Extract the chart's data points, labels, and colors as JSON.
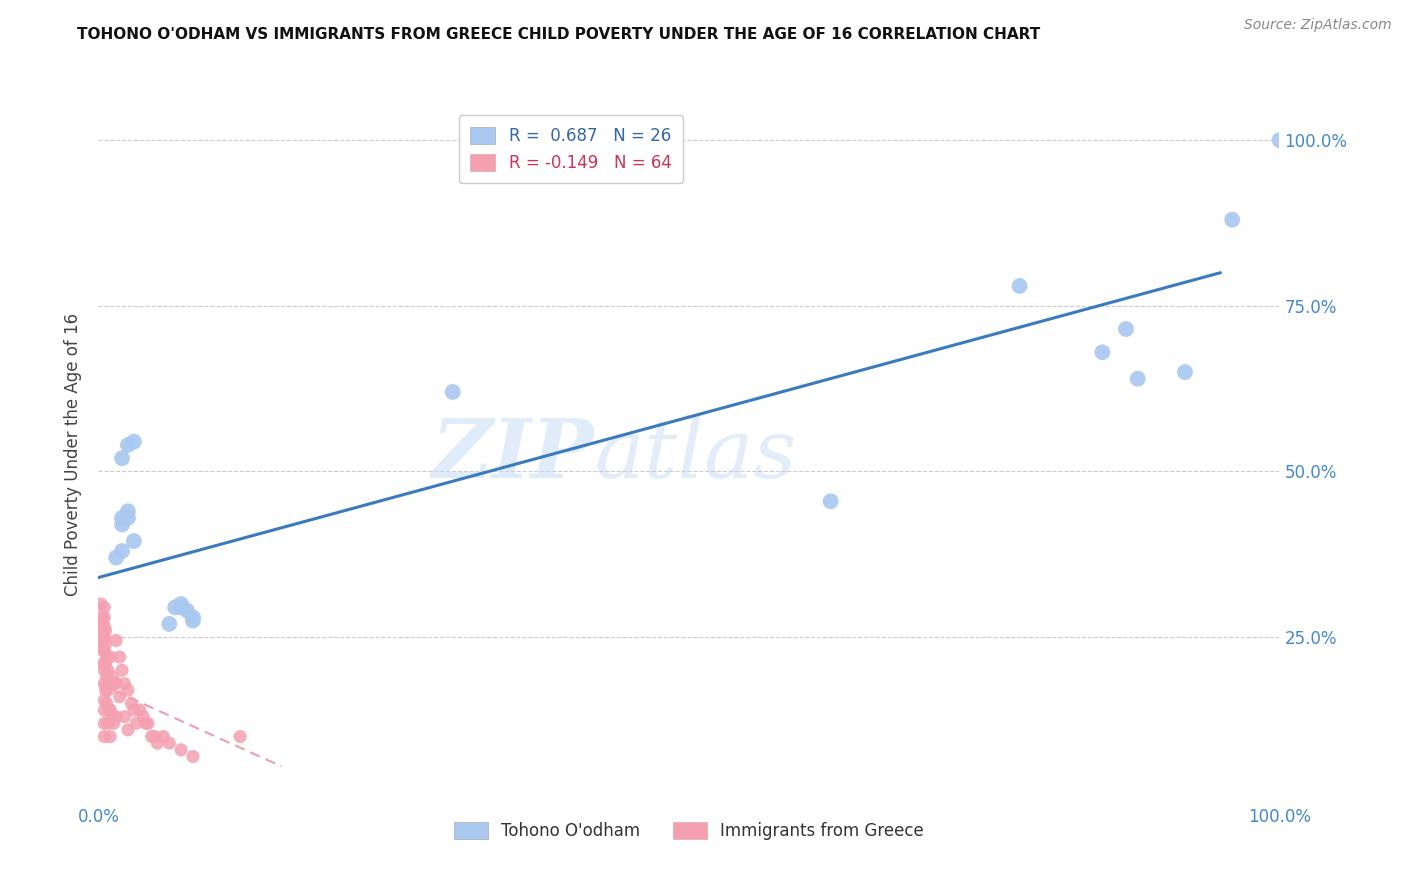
{
  "title": "TOHONO O'ODHAM VS IMMIGRANTS FROM GREECE CHILD POVERTY UNDER THE AGE OF 16 CORRELATION CHART",
  "source": "Source: ZipAtlas.com",
  "ylabel": "Child Poverty Under the Age of 16",
  "blue_color": "#a8c8f0",
  "pink_color": "#f4a0b0",
  "blue_line_color": "#3a7abf",
  "pink_line_color": "#e8a0b0",
  "watermark_zip": "ZIP",
  "watermark_atlas": "atlas",
  "xlim": [
    0.0,
    1.0
  ],
  "ylim": [
    0.0,
    1.05
  ],
  "xtick_positions": [
    0.0,
    1.0
  ],
  "xtick_labels": [
    "0.0%",
    "100.0%"
  ],
  "ytick_positions": [
    0.25,
    0.5,
    0.75,
    1.0
  ],
  "ytick_labels": [
    "25.0%",
    "50.0%",
    "75.0%",
    "100.0%"
  ],
  "tick_color": "#4488cc",
  "blue_scatter_x": [
    0.02,
    0.02,
    0.025,
    0.03,
    0.015,
    0.02,
    0.025,
    0.02,
    0.03,
    0.025,
    0.06,
    0.065,
    0.07,
    0.08,
    0.08,
    0.075,
    0.07,
    0.3,
    0.62,
    0.78,
    0.85,
    0.87,
    0.88,
    0.92,
    0.96,
    1.0
  ],
  "blue_scatter_y": [
    0.42,
    0.52,
    0.54,
    0.545,
    0.37,
    0.43,
    0.44,
    0.38,
    0.395,
    0.43,
    0.27,
    0.295,
    0.295,
    0.275,
    0.28,
    0.29,
    0.3,
    0.62,
    0.455,
    0.78,
    0.68,
    0.715,
    0.64,
    0.65,
    0.88,
    1.0
  ],
  "pink_scatter_x": [
    0.002,
    0.003,
    0.003,
    0.003,
    0.004,
    0.004,
    0.004,
    0.004,
    0.005,
    0.005,
    0.005,
    0.005,
    0.005,
    0.005,
    0.005,
    0.005,
    0.005,
    0.005,
    0.005,
    0.006,
    0.006,
    0.006,
    0.006,
    0.007,
    0.007,
    0.007,
    0.008,
    0.008,
    0.008,
    0.009,
    0.009,
    0.01,
    0.01,
    0.01,
    0.01,
    0.012,
    0.012,
    0.013,
    0.013,
    0.015,
    0.015,
    0.015,
    0.018,
    0.018,
    0.02,
    0.022,
    0.022,
    0.025,
    0.025,
    0.028,
    0.03,
    0.032,
    0.035,
    0.038,
    0.04,
    0.042,
    0.045,
    0.048,
    0.05,
    0.055,
    0.06,
    0.07,
    0.08,
    0.12
  ],
  "pink_scatter_y": [
    0.3,
    0.28,
    0.265,
    0.245,
    0.27,
    0.25,
    0.23,
    0.21,
    0.295,
    0.28,
    0.265,
    0.25,
    0.23,
    0.2,
    0.18,
    0.155,
    0.14,
    0.12,
    0.1,
    0.26,
    0.24,
    0.21,
    0.17,
    0.22,
    0.19,
    0.15,
    0.2,
    0.17,
    0.12,
    0.18,
    0.14,
    0.22,
    0.18,
    0.14,
    0.1,
    0.19,
    0.13,
    0.18,
    0.12,
    0.245,
    0.18,
    0.13,
    0.22,
    0.16,
    0.2,
    0.18,
    0.13,
    0.17,
    0.11,
    0.15,
    0.14,
    0.12,
    0.14,
    0.13,
    0.12,
    0.12,
    0.1,
    0.1,
    0.09,
    0.1,
    0.09,
    0.08,
    0.07,
    0.1
  ],
  "blue_line_x0": 0.0,
  "blue_line_x1": 0.95,
  "blue_line_y0": 0.34,
  "blue_line_y1": 0.8,
  "pink_line_x0": 0.0,
  "pink_line_x1": 0.155,
  "pink_line_y0": 0.18,
  "pink_line_y1": 0.055,
  "legend1_text": "R =  0.687   N = 26",
  "legend2_text": "R = -0.149   N = 64",
  "bottom_legend1": "Tohono O'odham",
  "bottom_legend2": "Immigrants from Greece",
  "title_fontsize": 11,
  "axis_fontsize": 12,
  "ylabel_fontsize": 12
}
